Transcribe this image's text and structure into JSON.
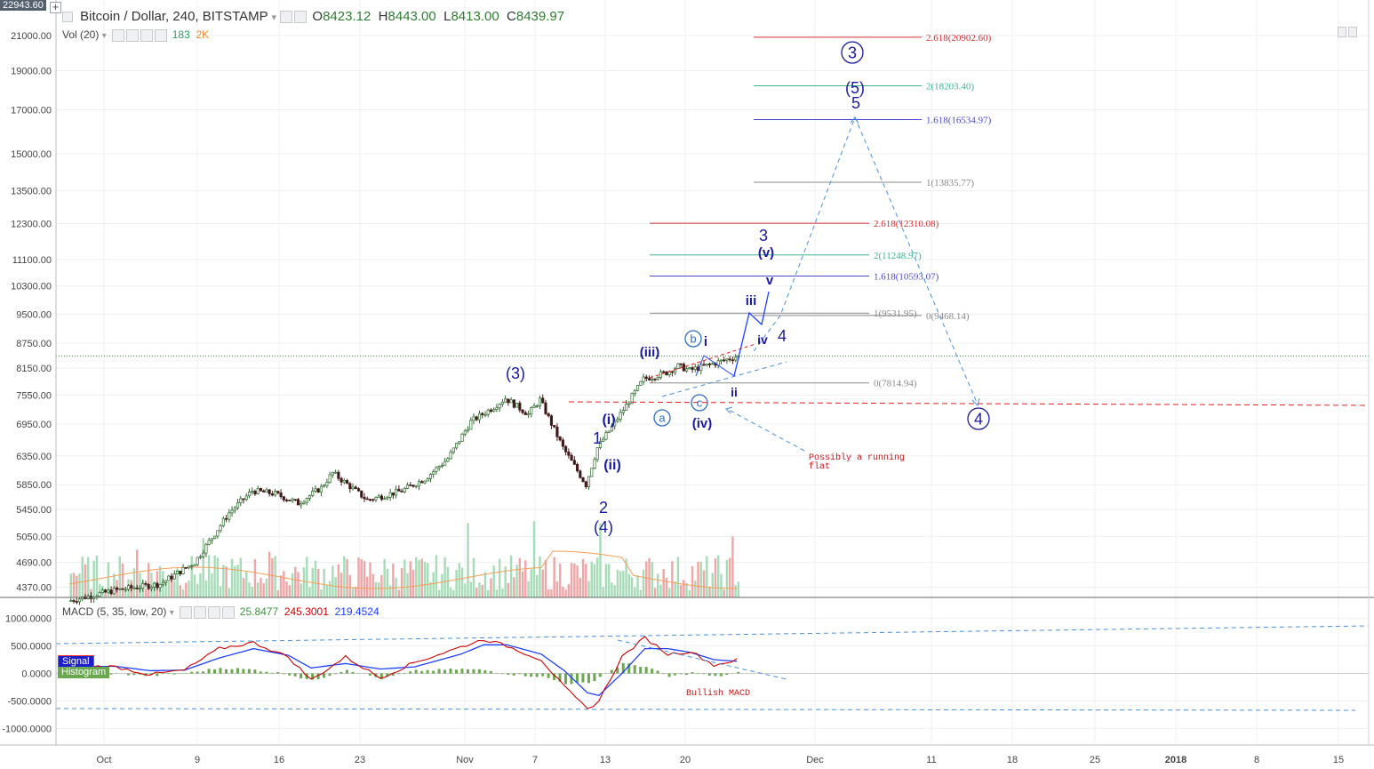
{
  "header": {
    "symbol": "Bitcoin / Dollar, 240, BITSTAMP",
    "o_label": "O",
    "o": "8423.12",
    "h_label": "H",
    "h": "8443.00",
    "l_label": "L",
    "l": "8413.00",
    "c_label": "C",
    "c": "8439.97",
    "vol_label": "Vol (20)",
    "vol_value": "183",
    "vol_ma": "2K",
    "macd_label": "MACD (5, 35, low, 20)",
    "macd_hist": "25.8477",
    "macd_line": "245.3001",
    "macd_signal": "219.4524",
    "top_price_tag": "22943.60",
    "signal_legend": "Signal",
    "histogram_legend": "Histogram"
  },
  "colors": {
    "up": "#4caf50",
    "down": "#c62828",
    "bull_candle_fill": "#ffffff",
    "wave_label": "#1a1a9e",
    "circle_label": "#2e6fc2",
    "macd_line": "#cc0000",
    "signal_line": "#1e40ff",
    "histogram": "#6aa84f",
    "fib_red": "#d03030",
    "fib_green": "#3cb58a",
    "fib_blue": "#4a4ad0",
    "fib_gray": "#8a8a8a"
  },
  "chart_data": {
    "type": "candlestick",
    "scale": "log",
    "ylim": [
      4200,
      22943.6
    ],
    "y_ticks": [
      "21000.00",
      "19000.00",
      "17000.00",
      "15000.00",
      "13500.00",
      "12300.00",
      "11100.00",
      "10300.00",
      "9500.00",
      "8750.00",
      "8150.00",
      "7550.00",
      "6950.00",
      "6350.00",
      "5850.00",
      "5450.00",
      "5050.00",
      "4690.00",
      "4370.00"
    ],
    "x_ticks": [
      "Oct",
      "9",
      "16",
      "23",
      "Nov",
      "7",
      "13",
      "20",
      "Dec",
      "11",
      "18",
      "25",
      "2018",
      "8",
      "15"
    ],
    "price_points": [
      [
        "Sep 28",
        4200
      ],
      [
        "Oct 2",
        4330
      ],
      [
        "Oct 6",
        4410
      ],
      [
        "Oct 9",
        4690
      ],
      [
        "Oct 12",
        5400
      ],
      [
        "Oct 14",
        5750
      ],
      [
        "Oct 16",
        5700
      ],
      [
        "Oct 18",
        5550
      ],
      [
        "Oct 20",
        5800
      ],
      [
        "Oct 21",
        6050
      ],
      [
        "Oct 24",
        5600
      ],
      [
        "Oct 27",
        5750
      ],
      [
        "Oct 29",
        5950
      ],
      [
        "Oct 31",
        6300
      ],
      [
        "Nov 2",
        7000
      ],
      [
        "Nov 4",
        7300
      ],
      [
        "Nov 5",
        7480
      ],
      [
        "Nov 7",
        7150
      ],
      [
        "Nov 8",
        7450
      ],
      [
        "Nov 10",
        6500
      ],
      [
        "Nov 12",
        5850
      ],
      [
        "Nov 13",
        6500
      ],
      [
        "Nov 15",
        7150
      ],
      [
        "Nov 17",
        7900
      ],
      [
        "Nov 19",
        8050
      ],
      [
        "Nov 20",
        8200
      ],
      [
        "Nov 21",
        8100
      ],
      [
        "Nov 23",
        8250
      ],
      [
        "Nov 25",
        8420
      ]
    ],
    "macd": {
      "macd_line": [
        [
          "Sep 27",
          150
        ],
        [
          "Oct 2",
          120
        ],
        [
          "Oct 5",
          -20
        ],
        [
          "Oct 8",
          60
        ],
        [
          "Oct 11",
          450
        ],
        [
          "Oct 14",
          560
        ],
        [
          "Oct 17",
          300
        ],
        [
          "Oct 19",
          -120
        ],
        [
          "Oct 22",
          300
        ],
        [
          "Oct 25",
          -80
        ],
        [
          "Oct 28",
          200
        ],
        [
          "Nov 1",
          480
        ],
        [
          "Nov 3",
          620
        ],
        [
          "Nov 5",
          500
        ],
        [
          "Nov 8",
          250
        ],
        [
          "Nov 10",
          -250
        ],
        [
          "Nov 12",
          -650
        ],
        [
          "Nov 13",
          -500
        ],
        [
          "Nov 15",
          300
        ],
        [
          "Nov 17",
          650
        ],
        [
          "Nov 19",
          350
        ],
        [
          "Nov 21",
          400
        ],
        [
          "Nov 23",
          150
        ],
        [
          "Nov 25",
          245.3001
        ]
      ],
      "signal_line": [
        [
          "Sep 27",
          120
        ],
        [
          "Oct 2",
          130
        ],
        [
          "Oct 5",
          50
        ],
        [
          "Oct 8",
          60
        ],
        [
          "Oct 11",
          280
        ],
        [
          "Oct 14",
          450
        ],
        [
          "Oct 17",
          330
        ],
        [
          "Oct 19",
          100
        ],
        [
          "Oct 22",
          180
        ],
        [
          "Oct 25",
          80
        ],
        [
          "Oct 28",
          120
        ],
        [
          "Nov 1",
          350
        ],
        [
          "Nov 3",
          520
        ],
        [
          "Nov 5",
          520
        ],
        [
          "Nov 8",
          350
        ],
        [
          "Nov 10",
          50
        ],
        [
          "Nov 12",
          -350
        ],
        [
          "Nov 13",
          -400
        ],
        [
          "Nov 15",
          0
        ],
        [
          "Nov 17",
          450
        ],
        [
          "Nov 19",
          450
        ],
        [
          "Nov 21",
          380
        ],
        [
          "Nov 23",
          250
        ],
        [
          "Nov 25",
          219.4524
        ]
      ],
      "ylim": [
        -1100,
        1100
      ],
      "y_ticks": [
        "1000.0000",
        "500.0000",
        "0.0000",
        "-500.0000",
        "-1000.0000"
      ]
    },
    "fib_levels": [
      {
        "label": "2.618(20902.60)",
        "value": 20902.6,
        "color": "red",
        "group": "upper"
      },
      {
        "label": "2(18203.40)",
        "value": 18203.4,
        "color": "green",
        "group": "upper"
      },
      {
        "label": "1.618(16534.97)",
        "value": 16534.97,
        "color": "blue",
        "group": "upper"
      },
      {
        "label": "1(13835.77)",
        "value": 13835.77,
        "color": "gray",
        "group": "upper"
      },
      {
        "label": "0(9468.14)",
        "value": 9468.14,
        "color": "gray",
        "group": "upper"
      },
      {
        "label": "2.618(12310.08)",
        "value": 12310.08,
        "color": "red",
        "group": "lower"
      },
      {
        "label": "2(11248.97)",
        "value": 11248.97,
        "color": "green",
        "group": "lower"
      },
      {
        "label": "1.618(10593.07)",
        "value": 10593.07,
        "color": "blue",
        "group": "lower"
      },
      {
        "label": "1(9531.95)",
        "value": 9531.95,
        "color": "gray",
        "group": "lower"
      },
      {
        "label": "0(7814.94)",
        "value": 7814.94,
        "color": "gray",
        "group": "lower"
      }
    ],
    "wave_labels": {
      "circ3": "3",
      "w5_paren": "(5)",
      "w5": "5",
      "w3": "3",
      "wv_paren": "(v)",
      "wv": "v",
      "wiii": "iii",
      "wiv": "iv",
      "w4": "4",
      "wiii_paren": "(iii)",
      "wb": "b",
      "wi": "i",
      "wii": "ii",
      "wa": "a",
      "wc": "c",
      "wiv_paren": "(iv)",
      "w3_paren": "(3)",
      "wi_paren": "(i)",
      "w1": "1",
      "wii_paren": "(ii)",
      "w2": "2",
      "w4_paren": "(4)",
      "circ4": "4"
    },
    "annotations": {
      "running_flat": [
        "Possibly a running",
        "flat"
      ],
      "bullish_macd": "Bullish MACD"
    }
  }
}
